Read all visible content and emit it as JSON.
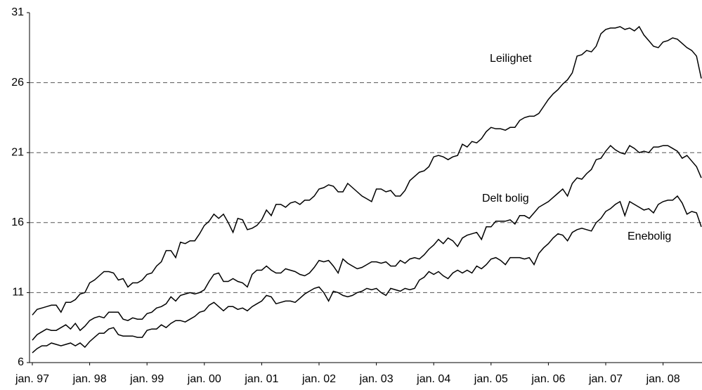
{
  "chart_data": {
    "type": "line",
    "categories": [
      "jan. 97",
      null,
      null,
      null,
      null,
      null,
      null,
      null,
      null,
      null,
      null,
      null,
      "jan. 98",
      null,
      null,
      null,
      null,
      null,
      null,
      null,
      null,
      null,
      null,
      null,
      "jan. 99",
      null,
      null,
      null,
      null,
      null,
      null,
      null,
      null,
      null,
      null,
      null,
      "jan. 00",
      null,
      null,
      null,
      null,
      null,
      null,
      null,
      null,
      null,
      null,
      null,
      "jan. 01",
      null,
      null,
      null,
      null,
      null,
      null,
      null,
      null,
      null,
      null,
      null,
      "jan. 02",
      null,
      null,
      null,
      null,
      null,
      null,
      null,
      null,
      null,
      null,
      null,
      "jan. 03",
      null,
      null,
      null,
      null,
      null,
      null,
      null,
      null,
      null,
      null,
      null,
      "jan. 04",
      null,
      null,
      null,
      null,
      null,
      null,
      null,
      null,
      null,
      null,
      null,
      "jan. 05",
      null,
      null,
      null,
      null,
      null,
      null,
      null,
      null,
      null,
      null,
      null,
      "jan. 06",
      null,
      null,
      null,
      null,
      null,
      null,
      null,
      null,
      null,
      null,
      null,
      "jan. 07",
      null,
      null,
      null,
      null,
      null,
      null,
      null,
      null,
      null,
      null,
      null,
      "jan. 08",
      null,
      null,
      null,
      null,
      null,
      null,
      null,
      null
    ],
    "series": [
      {
        "name": "Leilighet",
        "color": "#000000",
        "values": [
          9.4,
          9.8,
          9.9,
          10.0,
          10.1,
          10.1,
          9.6,
          10.3,
          10.3,
          10.5,
          10.9,
          11.0,
          11.7,
          11.9,
          12.2,
          12.5,
          12.5,
          12.4,
          11.9,
          12.0,
          11.4,
          11.7,
          11.7,
          11.9,
          12.3,
          12.4,
          12.9,
          13.2,
          14.0,
          14.0,
          13.5,
          14.6,
          14.5,
          14.7,
          14.7,
          15.2,
          15.8,
          16.1,
          16.6,
          16.3,
          16.6,
          16.0,
          15.3,
          16.3,
          16.2,
          15.5,
          15.6,
          15.8,
          16.2,
          16.9,
          16.5,
          17.3,
          17.3,
          17.1,
          17.4,
          17.5,
          17.3,
          17.6,
          17.6,
          17.9,
          18.4,
          18.5,
          18.7,
          18.6,
          18.2,
          18.2,
          18.8,
          18.5,
          18.2,
          17.9,
          17.7,
          17.5,
          18.4,
          18.4,
          18.2,
          18.3,
          17.9,
          17.9,
          18.3,
          19.0,
          19.3,
          19.6,
          19.7,
          20.0,
          20.7,
          20.8,
          20.7,
          20.5,
          20.7,
          20.8,
          21.6,
          21.4,
          21.8,
          21.7,
          22.0,
          22.5,
          22.8,
          22.7,
          22.7,
          22.6,
          22.8,
          22.8,
          23.3,
          23.5,
          23.6,
          23.6,
          23.8,
          24.3,
          24.8,
          25.2,
          25.5,
          25.9,
          26.2,
          26.7,
          27.9,
          28.0,
          28.3,
          28.2,
          28.6,
          29.5,
          29.8,
          29.9,
          29.9,
          30.0,
          29.8,
          29.9,
          29.7,
          30.0,
          29.4,
          29.0,
          28.6,
          28.5,
          28.9,
          29.0,
          29.2,
          29.1,
          28.8,
          28.5,
          28.3,
          27.9,
          26.3
        ]
      },
      {
        "name": "Delt bolig",
        "color": "#000000",
        "values": [
          7.6,
          8.0,
          8.2,
          8.4,
          8.3,
          8.3,
          8.5,
          8.7,
          8.4,
          8.8,
          8.3,
          8.6,
          9.0,
          9.2,
          9.3,
          9.2,
          9.6,
          9.6,
          9.6,
          9.1,
          9.0,
          9.2,
          9.1,
          9.1,
          9.5,
          9.6,
          9.9,
          10.0,
          10.2,
          10.7,
          10.4,
          10.8,
          10.9,
          11.0,
          10.9,
          11.0,
          11.2,
          11.8,
          12.3,
          12.4,
          11.8,
          11.8,
          12.0,
          11.8,
          11.7,
          11.4,
          12.3,
          12.6,
          12.6,
          12.9,
          12.6,
          12.4,
          12.4,
          12.7,
          12.6,
          12.5,
          12.3,
          12.2,
          12.4,
          12.8,
          13.3,
          13.2,
          13.3,
          12.9,
          12.4,
          13.4,
          13.1,
          12.9,
          12.7,
          12.8,
          13.0,
          13.2,
          13.2,
          13.1,
          13.2,
          12.9,
          12.9,
          13.3,
          13.1,
          13.4,
          13.5,
          13.4,
          13.7,
          14.1,
          14.4,
          14.8,
          14.5,
          14.9,
          14.7,
          14.3,
          14.9,
          15.1,
          15.2,
          15.3,
          14.8,
          15.7,
          15.7,
          16.1,
          16.1,
          16.1,
          16.2,
          15.9,
          16.5,
          16.5,
          16.3,
          16.7,
          17.1,
          17.3,
          17.5,
          17.8,
          18.1,
          18.4,
          17.9,
          18.8,
          19.2,
          19.1,
          19.5,
          19.8,
          20.5,
          20.6,
          21.1,
          21.5,
          21.2,
          21.0,
          20.9,
          21.5,
          21.3,
          21.0,
          21.1,
          21.0,
          21.4,
          21.4,
          21.5,
          21.5,
          21.3,
          21.1,
          20.6,
          20.8,
          20.4,
          20.0,
          19.2
        ]
      },
      {
        "name": "Enebolig",
        "color": "#000000",
        "values": [
          6.7,
          7.0,
          7.2,
          7.2,
          7.4,
          7.3,
          7.2,
          7.3,
          7.4,
          7.2,
          7.4,
          7.1,
          7.5,
          7.8,
          8.1,
          8.1,
          8.4,
          8.5,
          8.0,
          7.9,
          7.9,
          7.9,
          7.8,
          7.8,
          8.3,
          8.4,
          8.4,
          8.7,
          8.5,
          8.8,
          9.0,
          9.0,
          8.9,
          9.1,
          9.3,
          9.6,
          9.7,
          10.1,
          10.3,
          10.0,
          9.7,
          10.0,
          10.0,
          9.8,
          9.9,
          9.7,
          10.0,
          10.2,
          10.4,
          10.8,
          10.7,
          10.2,
          10.3,
          10.4,
          10.4,
          10.3,
          10.6,
          10.9,
          11.1,
          11.3,
          11.4,
          11.0,
          10.4,
          11.1,
          11.0,
          10.8,
          10.7,
          10.8,
          11.0,
          11.1,
          11.3,
          11.2,
          11.3,
          11.0,
          10.8,
          11.3,
          11.2,
          11.1,
          11.3,
          11.2,
          11.3,
          11.9,
          12.1,
          12.5,
          12.3,
          12.5,
          12.2,
          12.0,
          12.4,
          12.6,
          12.4,
          12.6,
          12.4,
          12.9,
          12.7,
          13.0,
          13.4,
          13.5,
          13.3,
          13.0,
          13.5,
          13.5,
          13.5,
          13.4,
          13.5,
          13.0,
          13.8,
          14.2,
          14.5,
          14.9,
          15.2,
          15.1,
          14.7,
          15.3,
          15.5,
          15.6,
          15.5,
          15.4,
          16.0,
          16.3,
          16.8,
          17.0,
          17.3,
          17.5,
          16.5,
          17.5,
          17.3,
          17.1,
          16.9,
          17.0,
          16.7,
          17.3,
          17.5,
          17.6,
          17.6,
          17.9,
          17.4,
          16.6,
          16.8,
          16.7,
          15.7
        ]
      }
    ],
    "ylim": [
      6,
      31
    ],
    "yticks": [
      6,
      11,
      16,
      21,
      26,
      31
    ],
    "grid": true
  }
}
